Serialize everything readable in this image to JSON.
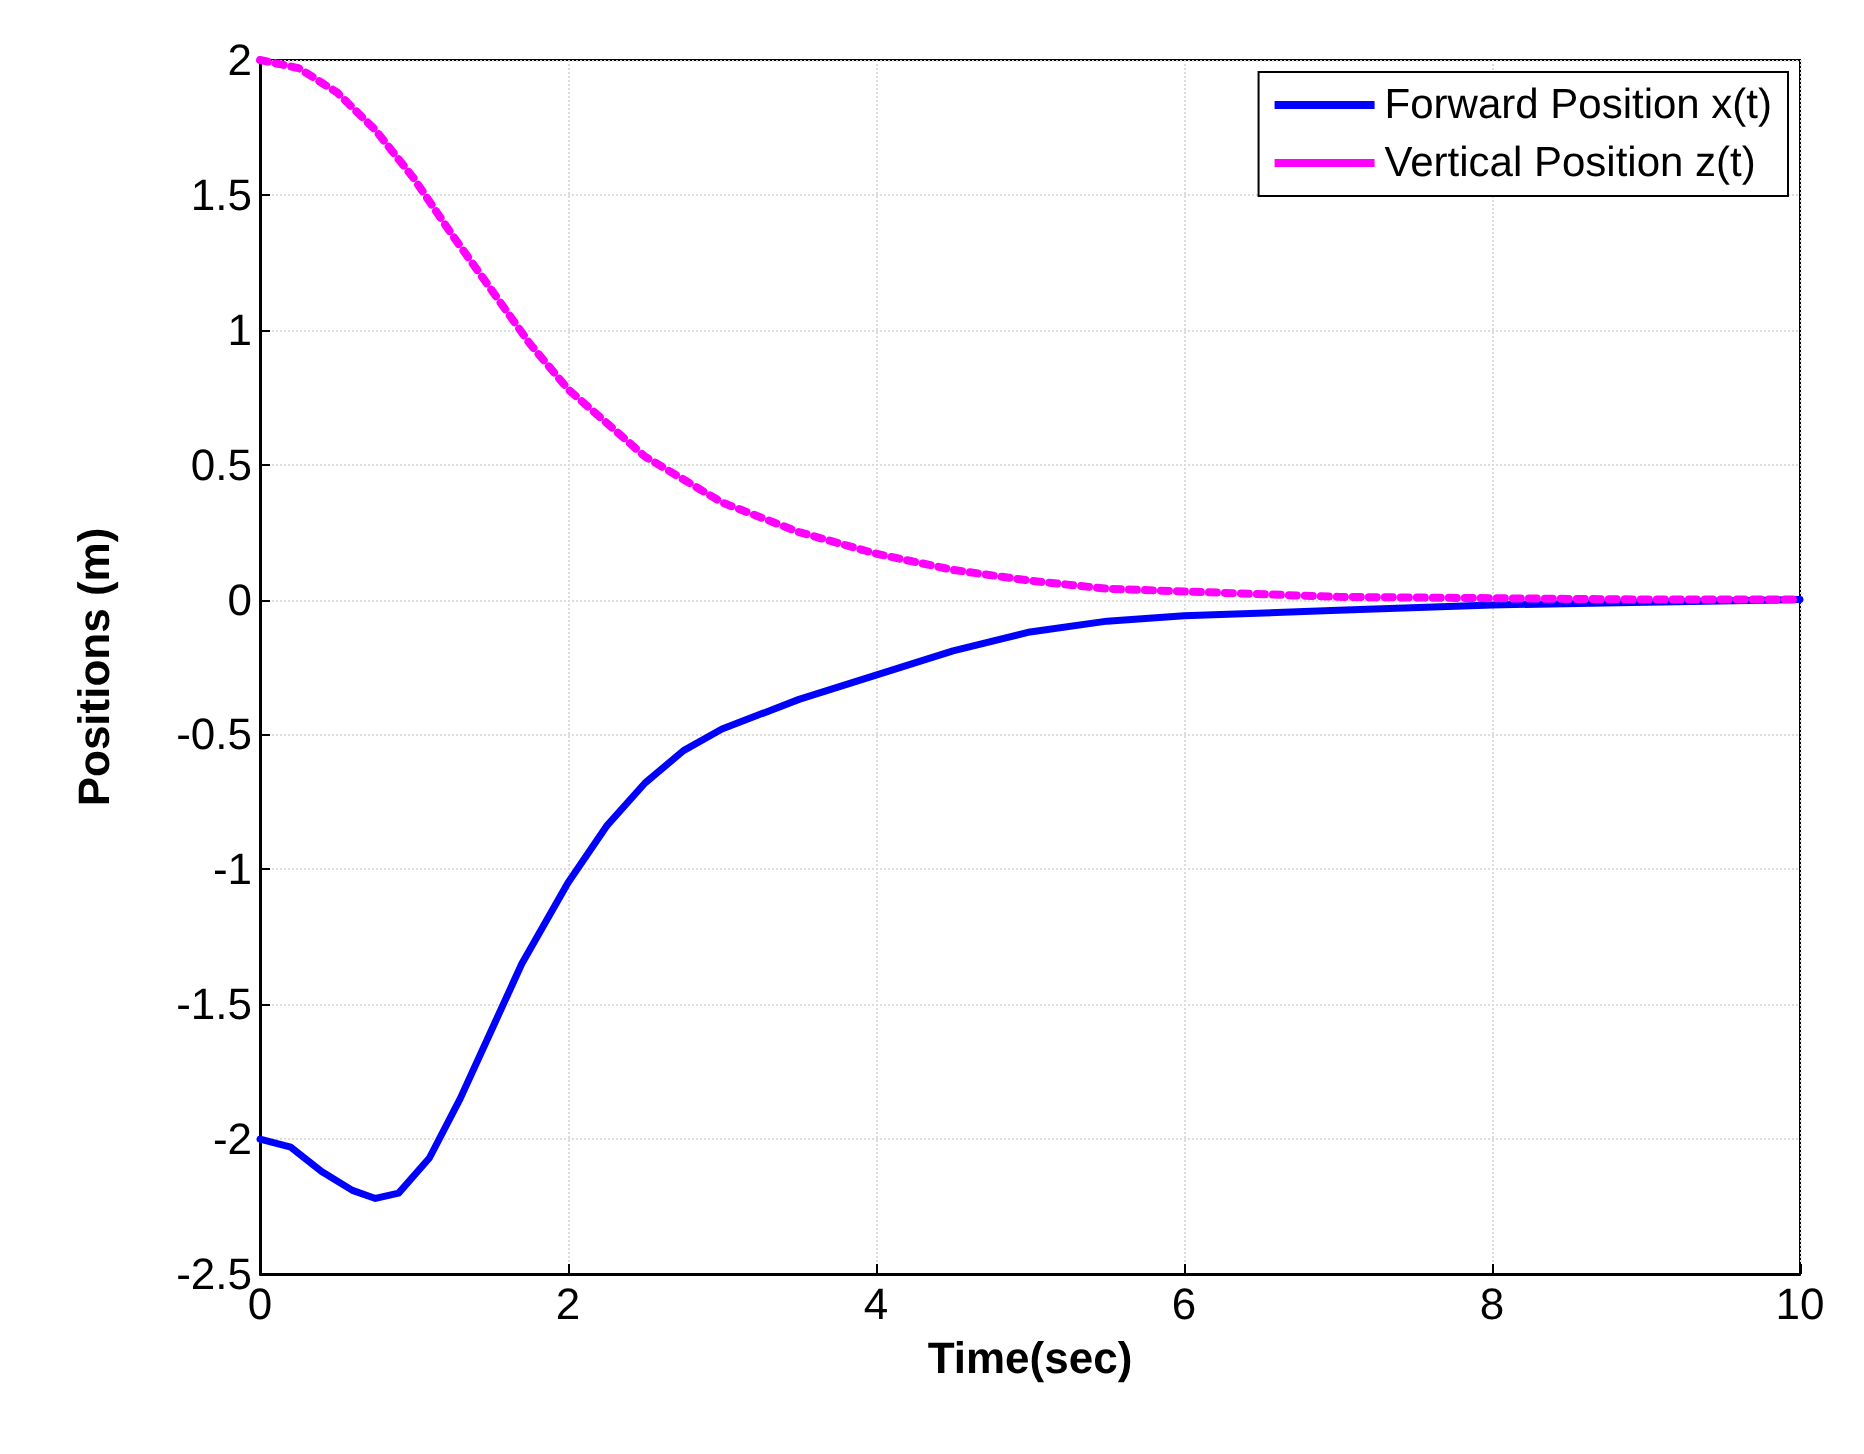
{
  "chart_data": {
    "type": "line",
    "xlabel": "Time(sec)",
    "ylabel": "Positions (m)",
    "xlim": [
      0,
      10
    ],
    "ylim": [
      -2.5,
      2
    ],
    "xticks": [
      0,
      2,
      4,
      6,
      8,
      10
    ],
    "yticks": [
      -2.5,
      -2,
      -1.5,
      -1,
      -0.5,
      0,
      0.5,
      1,
      1.5,
      2
    ],
    "grid": true,
    "legend": "top right",
    "series": [
      {
        "name": "Forward Position x(t)",
        "color": "#0000ff",
        "line_style": "solid",
        "x": [
          0,
          0.2,
          0.4,
          0.6,
          0.75,
          0.9,
          1.1,
          1.3,
          1.5,
          1.7,
          2,
          2.25,
          2.5,
          2.75,
          3,
          3.5,
          4,
          4.5,
          5,
          5.5,
          6,
          7,
          8,
          9,
          10
        ],
        "values": [
          -2,
          -2.03,
          -2.12,
          -2.19,
          -2.22,
          -2.2,
          -2.07,
          -1.85,
          -1.6,
          -1.35,
          -1.05,
          -0.84,
          -0.68,
          -0.56,
          -0.48,
          -0.37,
          -0.28,
          -0.19,
          -0.12,
          -0.08,
          -0.06,
          -0.04,
          -0.02,
          -0.01,
          0
        ]
      },
      {
        "name": "Vertical Position z(t)",
        "color": "#ff00ff",
        "line_style": "dotted",
        "x": [
          0,
          0.25,
          0.5,
          0.75,
          1,
          1.25,
          1.5,
          1.75,
          2,
          2.5,
          3,
          3.5,
          4,
          4.5,
          5,
          5.5,
          6,
          7,
          8,
          9,
          10
        ],
        "values": [
          2,
          1.97,
          1.88,
          1.74,
          1.56,
          1.35,
          1.15,
          0.95,
          0.78,
          0.53,
          0.36,
          0.25,
          0.17,
          0.11,
          0.07,
          0.04,
          0.03,
          0.01,
          0.005,
          0,
          0
        ]
      }
    ]
  }
}
